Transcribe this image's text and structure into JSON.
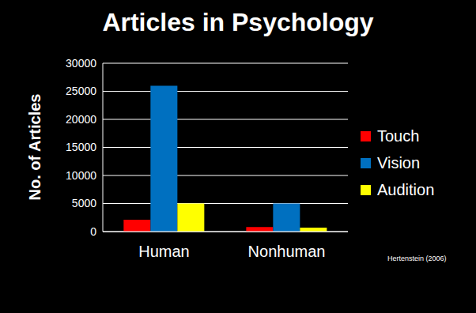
{
  "chart_data": {
    "type": "bar",
    "title": "Articles in Psychology",
    "y_label": "No. of Articles",
    "categories": [
      "Human",
      "Nonhuman"
    ],
    "series": [
      {
        "name": "Touch",
        "color": "#ff0000",
        "values": [
          2100,
          800
        ]
      },
      {
        "name": "Vision",
        "color": "#0070c0",
        "values": [
          26000,
          5000
        ]
      },
      {
        "name": "Audition",
        "color": "#ffff00",
        "values": [
          5000,
          700
        ]
      }
    ],
    "ylim": [
      0,
      30000
    ],
    "yticks": [
      0,
      5000,
      10000,
      15000,
      20000,
      25000,
      30000
    ],
    "grid": true,
    "legend": "right",
    "annotation": "Hertenstein (2006)"
  }
}
